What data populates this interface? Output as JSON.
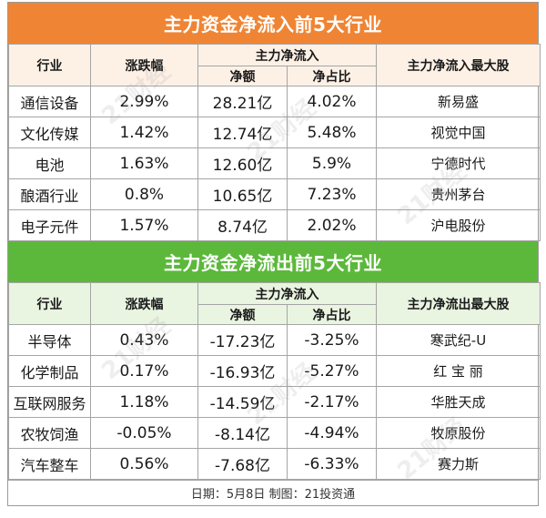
{
  "inflow": {
    "title": "主力资金净流入前5大行业",
    "headers": {
      "industry": "行业",
      "change": "涨跌幅",
      "group": "主力净流入",
      "amount": "净额",
      "ratio": "净占比",
      "top_stock": "主力净流入最大股"
    },
    "rows": [
      {
        "industry": "通信设备",
        "change": "2.99%",
        "amount": "28.21亿",
        "ratio": "4.02%",
        "stock": "新易盛"
      },
      {
        "industry": "文化传媒",
        "change": "1.42%",
        "amount": "12.74亿",
        "ratio": "5.48%",
        "stock": "视觉中国"
      },
      {
        "industry": "电池",
        "change": "1.63%",
        "amount": "12.60亿",
        "ratio": "5.9%",
        "stock": "宁德时代"
      },
      {
        "industry": "酿酒行业",
        "change": "0.8%",
        "amount": "10.65亿",
        "ratio": "7.23%",
        "stock": "贵州茅台"
      },
      {
        "industry": "电子元件",
        "change": "1.57%",
        "amount": "8.74亿",
        "ratio": "2.02%",
        "stock": "沪电股份"
      }
    ]
  },
  "outflow": {
    "title": "主力资金净流出前5大行业",
    "headers": {
      "industry": "行业",
      "change": "涨跌幅",
      "group": "主力净流入",
      "amount": "净额",
      "ratio": "净占比",
      "top_stock": "主力净流出最大股"
    },
    "rows": [
      {
        "industry": "半导体",
        "change": "0.43%",
        "amount": "-17.23亿",
        "ratio": "-3.25%",
        "stock": "寒武纪-U"
      },
      {
        "industry": "化学制品",
        "change": "0.17%",
        "amount": "-16.93亿",
        "ratio": "-5.27%",
        "stock": "红 宝 丽"
      },
      {
        "industry": "互联网服务",
        "change": "1.18%",
        "amount": "-14.59亿",
        "ratio": "-2.17%",
        "stock": "华胜天成"
      },
      {
        "industry": "农牧饲渔",
        "change": "-0.05%",
        "amount": "-8.14亿",
        "ratio": "-4.94%",
        "stock": "牧原股份"
      },
      {
        "industry": "汽车整车",
        "change": "0.56%",
        "amount": "-7.68亿",
        "ratio": "-6.33%",
        "stock": "赛力斯"
      }
    ]
  },
  "footer": "日期：5月8日 制图：21投资通",
  "watermark": "21财经",
  "colors": {
    "inflow_banner": "#ef8534",
    "outflow_banner": "#5cb83b",
    "inflow_header": "#fdf1e6",
    "outflow_header": "#e9f4e1"
  }
}
